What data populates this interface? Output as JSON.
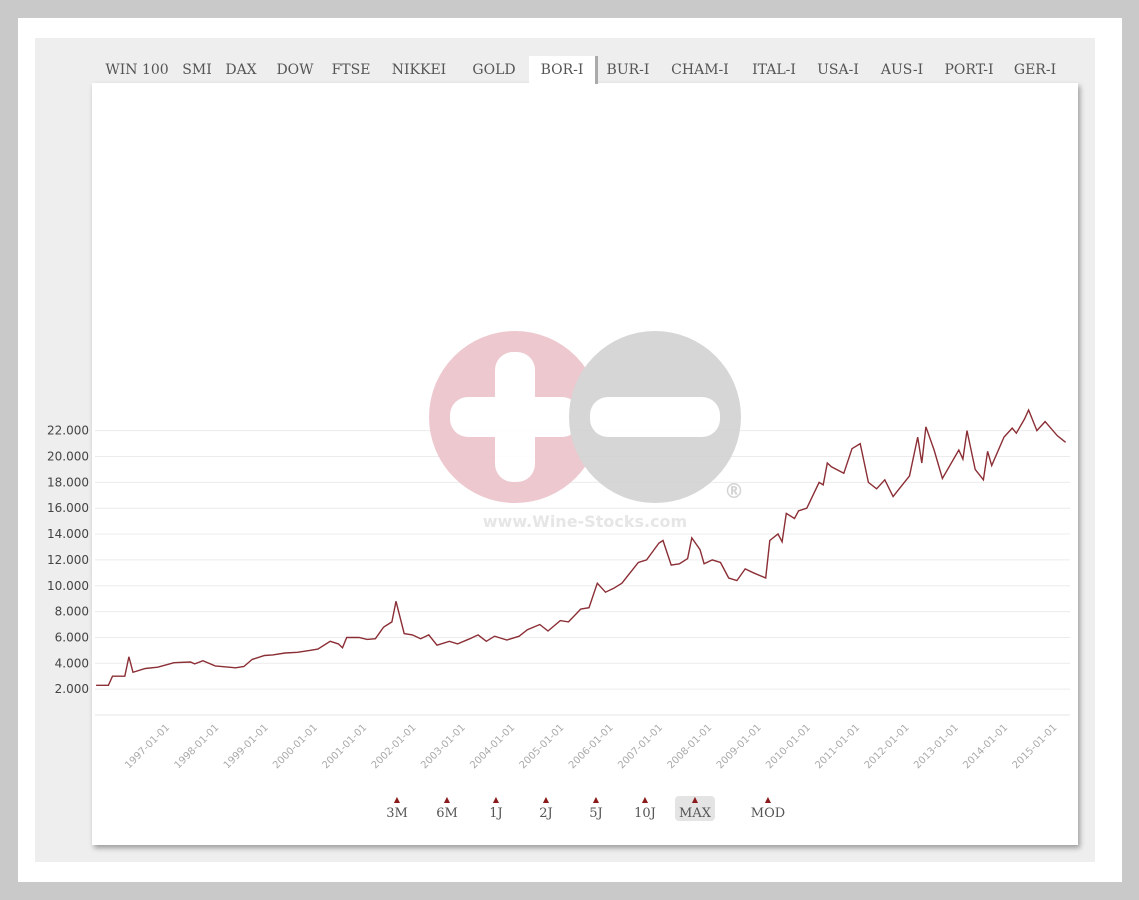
{
  "tabs": [
    "WIN 100",
    "SMI",
    "DAX",
    "DOW",
    "FTSE",
    "NIKKEI",
    "GOLD",
    "BOR-I",
    "BUR-I",
    "CHAM-I",
    "ITAL-I",
    "USA-I",
    "AUS-I",
    "PORT-I",
    "GER-I"
  ],
  "active_tab": "BOR-I",
  "ranges": [
    "3M",
    "6M",
    "1J",
    "2J",
    "5J",
    "10J",
    "MAX",
    "MOD"
  ],
  "active_range": "MAX",
  "watermark": {
    "text": "www.Wine-Stocks.com",
    "registered": "®"
  },
  "colors": {
    "line": "#8b2e35",
    "accent": "#8b1a1a",
    "watermark_plus": "#e8b4bd",
    "watermark_minus": "#c8c8c8"
  },
  "chart_data": {
    "type": "line",
    "title": "",
    "xlabel": "",
    "ylabel": "",
    "ylim": [
      0,
      24400
    ],
    "xlim": [
      "1995-07",
      "2015-03"
    ],
    "grid": true,
    "y_ticks": [
      2000,
      4000,
      6000,
      8000,
      10000,
      12000,
      14000,
      16000,
      18000,
      20000,
      22000
    ],
    "y_tick_labels": [
      "2.000",
      "4.000",
      "6.000",
      "8.000",
      "10.000",
      "12.000",
      "14.000",
      "16.000",
      "18.000",
      "20.000",
      "22.000"
    ],
    "x_tick_labels": [
      "1997-01-01",
      "1998-01-01",
      "1999-01-01",
      "2000-01-01",
      "2001-01-01",
      "2002-01-01",
      "2003-01-01",
      "2004-01-01",
      "2005-01-01",
      "2006-01-01",
      "2007-01-01",
      "2008-01-01",
      "2009-01-01",
      "2010-01-01",
      "2011-01-01",
      "2012-01-01",
      "2013-01-01",
      "2014-01-01",
      "2015-01-01"
    ],
    "series": [
      {
        "points": [
          [
            "1995-07",
            2300
          ],
          [
            "1995-10",
            2300
          ],
          [
            "1995-11",
            3000
          ],
          [
            "1996-02",
            3000
          ],
          [
            "1996-03",
            4500
          ],
          [
            "1996-04",
            3300
          ],
          [
            "1996-07",
            3600
          ],
          [
            "1996-10",
            3700
          ],
          [
            "1997-02",
            4050
          ],
          [
            "1997-06",
            4100
          ],
          [
            "1997-07",
            3950
          ],
          [
            "1997-09",
            4200
          ],
          [
            "1997-12",
            3800
          ],
          [
            "1998-05",
            3650
          ],
          [
            "1998-07",
            3750
          ],
          [
            "1998-09",
            4300
          ],
          [
            "1998-12",
            4600
          ],
          [
            "1999-02",
            4650
          ],
          [
            "1999-05",
            4800
          ],
          [
            "1999-08",
            4850
          ],
          [
            "1999-11",
            5000
          ],
          [
            "2000-01",
            5100
          ],
          [
            "2000-04",
            5700
          ],
          [
            "2000-06",
            5500
          ],
          [
            "2000-07",
            5200
          ],
          [
            "2000-08",
            6000
          ],
          [
            "2000-11",
            6000
          ],
          [
            "2001-01",
            5850
          ],
          [
            "2001-03",
            5900
          ],
          [
            "2001-05",
            6800
          ],
          [
            "2001-07",
            7200
          ],
          [
            "2001-08",
            8800
          ],
          [
            "2001-10",
            6300
          ],
          [
            "2001-12",
            6200
          ],
          [
            "2002-02",
            5900
          ],
          [
            "2002-04",
            6200
          ],
          [
            "2002-06",
            5400
          ],
          [
            "2002-09",
            5700
          ],
          [
            "2002-11",
            5500
          ],
          [
            "2003-02",
            5900
          ],
          [
            "2003-04",
            6200
          ],
          [
            "2003-06",
            5700
          ],
          [
            "2003-08",
            6100
          ],
          [
            "2003-11",
            5800
          ],
          [
            "2004-02",
            6100
          ],
          [
            "2004-04",
            6600
          ],
          [
            "2004-07",
            7000
          ],
          [
            "2004-09",
            6500
          ],
          [
            "2004-12",
            7300
          ],
          [
            "2005-02",
            7200
          ],
          [
            "2005-05",
            8200
          ],
          [
            "2005-07",
            8300
          ],
          [
            "2005-09",
            10200
          ],
          [
            "2005-11",
            9500
          ],
          [
            "2006-01",
            9800
          ],
          [
            "2006-03",
            10200
          ],
          [
            "2006-05",
            11000
          ],
          [
            "2006-07",
            11800
          ],
          [
            "2006-09",
            12000
          ],
          [
            "2006-12",
            13300
          ],
          [
            "2007-01",
            13500
          ],
          [
            "2007-03",
            11600
          ],
          [
            "2007-05",
            11700
          ],
          [
            "2007-07",
            12100
          ],
          [
            "2007-08",
            13700
          ],
          [
            "2007-10",
            12800
          ],
          [
            "2007-11",
            11700
          ],
          [
            "2008-01",
            12000
          ],
          [
            "2008-03",
            11800
          ],
          [
            "2008-05",
            10600
          ],
          [
            "2008-07",
            10400
          ],
          [
            "2008-09",
            11300
          ],
          [
            "2008-11",
            11000
          ],
          [
            "2009-02",
            10600
          ],
          [
            "2009-03",
            13500
          ],
          [
            "2009-05",
            14000
          ],
          [
            "2009-06",
            13400
          ],
          [
            "2009-07",
            15600
          ],
          [
            "2009-09",
            15200
          ],
          [
            "2009-10",
            15800
          ],
          [
            "2009-12",
            16000
          ],
          [
            "2010-03",
            18000
          ],
          [
            "2010-04",
            17800
          ],
          [
            "2010-05",
            19500
          ],
          [
            "2010-06",
            19200
          ],
          [
            "2010-09",
            18700
          ],
          [
            "2010-11",
            20600
          ],
          [
            "2011-01",
            21000
          ],
          [
            "2011-03",
            18000
          ],
          [
            "2011-05",
            17500
          ],
          [
            "2011-07",
            18200
          ],
          [
            "2011-09",
            16900
          ],
          [
            "2011-11",
            17700
          ],
          [
            "2012-01",
            18500
          ],
          [
            "2012-03",
            21500
          ],
          [
            "2012-04",
            19500
          ],
          [
            "2012-05",
            22300
          ],
          [
            "2012-07",
            20500
          ],
          [
            "2012-09",
            18300
          ],
          [
            "2013-01",
            20500
          ],
          [
            "2013-02",
            19800
          ],
          [
            "2013-03",
            22000
          ],
          [
            "2013-05",
            19000
          ],
          [
            "2013-07",
            18200
          ],
          [
            "2013-08",
            20400
          ],
          [
            "2013-09",
            19300
          ],
          [
            "2013-12",
            21500
          ],
          [
            "2014-02",
            22200
          ],
          [
            "2014-03",
            21800
          ],
          [
            "2014-05",
            22900
          ],
          [
            "2014-06",
            23600
          ],
          [
            "2014-08",
            22000
          ],
          [
            "2014-10",
            22700
          ],
          [
            "2015-01",
            21600
          ],
          [
            "2015-03",
            21100
          ]
        ]
      }
    ]
  }
}
